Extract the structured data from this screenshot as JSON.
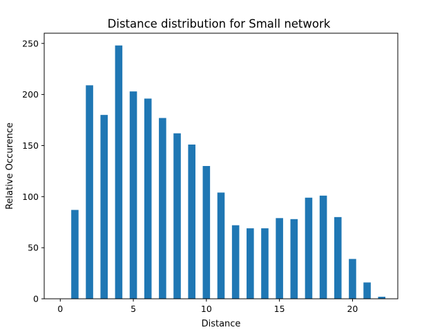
{
  "chart_data": {
    "type": "bar",
    "title": "Distance distribution for Small network",
    "xlabel": "Distance",
    "ylabel": "Relative Occurence",
    "x": [
      1,
      2,
      3,
      4,
      5,
      6,
      7,
      8,
      9,
      10,
      11,
      12,
      13,
      14,
      15,
      16,
      17,
      18,
      19,
      20,
      21,
      22
    ],
    "values": [
      87,
      209,
      180,
      248,
      203,
      196,
      177,
      162,
      151,
      130,
      104,
      72,
      69,
      69,
      79,
      78,
      99,
      101,
      80,
      39,
      16,
      2
    ],
    "xlim": [
      -1.1,
      23.1
    ],
    "ylim": [
      0,
      260
    ],
    "xticks": [
      0,
      5,
      10,
      15,
      20
    ],
    "yticks": [
      0,
      50,
      100,
      150,
      200,
      250
    ],
    "bar_color": "#1f77b4",
    "grid": false,
    "legend": null
  }
}
